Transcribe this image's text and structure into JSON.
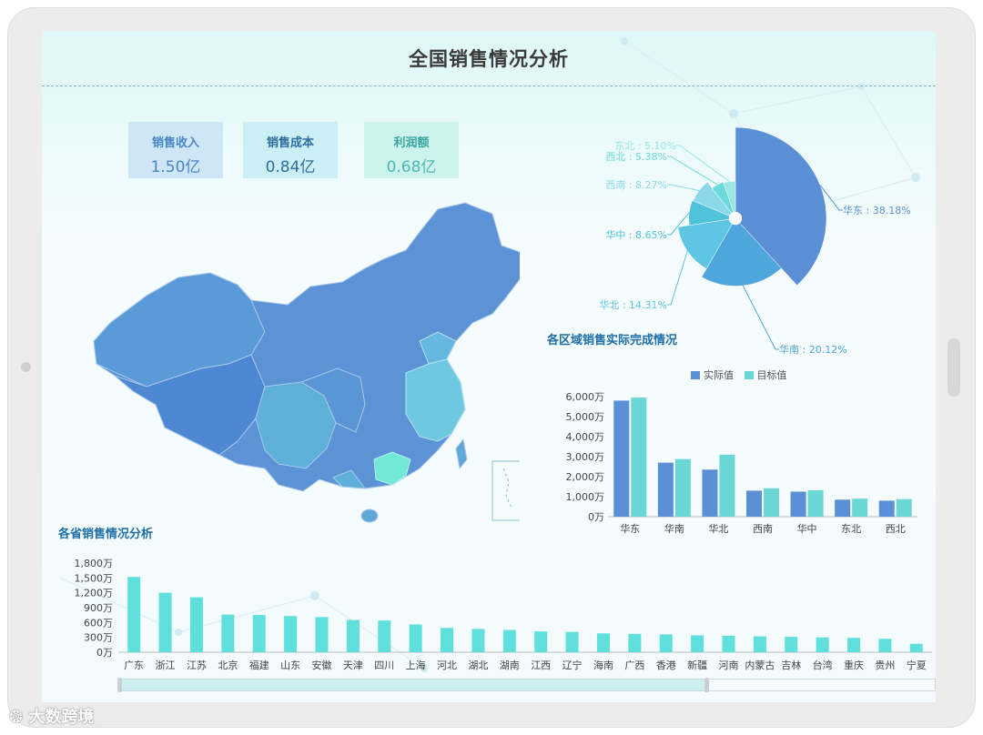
{
  "header": {
    "title": "全国销售情况分析"
  },
  "kpis": [
    {
      "label": "销售收入",
      "value": "1.50亿",
      "bg": "#cfe6f7",
      "label_color": "#4a86c5",
      "value_color": "#4a86c5"
    },
    {
      "label": "销售成本",
      "value": "0.84亿",
      "bg": "#cbeff5",
      "label_color": "#2e6f9e",
      "value_color": "#2e6f9e"
    },
    {
      "label": "利润额",
      "value": "0.68亿",
      "bg": "#cdf3ef",
      "label_color": "#3aa8a0",
      "value_color": "#4fb8b0"
    }
  ],
  "sections": {
    "region": "各区域销售实际完成情况",
    "province": "各省销售情况分析"
  },
  "legend": {
    "actual": "实际值",
    "target": "目标值"
  },
  "colors": {
    "actual": "#5b8fd6",
    "target": "#6bd6d6",
    "province_bar": "#5fe0dc",
    "title": "#3a3a3a",
    "section": "#1f6fa8"
  },
  "chart_data": [
    {
      "type": "pie",
      "subtype": "rose",
      "slices": [
        {
          "name": "华东",
          "value": 38.18,
          "label": "华东 : 38.18%",
          "color": "#5b8fd6"
        },
        {
          "name": "华南",
          "value": 20.12,
          "label": "华南 : 20.12%",
          "color": "#4fa6dd"
        },
        {
          "name": "华北",
          "value": 14.31,
          "label": "华北 : 14.31%",
          "color": "#5ec6e3"
        },
        {
          "name": "华中",
          "value": 8.65,
          "label": "华中 : 8.65%",
          "color": "#4fc3d9"
        },
        {
          "name": "西南",
          "value": 8.27,
          "label": "西南 : 8.27%",
          "color": "#8bd8e8"
        },
        {
          "name": "西北",
          "value": 5.38,
          "label": "西北 : 5.38%",
          "color": "#6cdad8"
        },
        {
          "name": "东北",
          "value": 5.1,
          "label": "东北 : 5.10%",
          "color": "#9be6e3"
        }
      ]
    },
    {
      "type": "bar",
      "title": "各区域销售实际完成情况",
      "categories": [
        "华东",
        "华南",
        "华北",
        "西南",
        "华中",
        "东北",
        "西北"
      ],
      "series": [
        {
          "name": "实际值",
          "values": [
            5800,
            2700,
            2350,
            1300,
            1250,
            850,
            800
          ]
        },
        {
          "name": "目标值",
          "values": [
            5950,
            2880,
            3100,
            1420,
            1320,
            900,
            880
          ]
        }
      ],
      "y_ticks": [
        "0万",
        "1,000万",
        "2,000万",
        "3,000万",
        "4,000万",
        "5,000万",
        "6,000万"
      ],
      "ylim": [
        0,
        6000
      ]
    },
    {
      "type": "bar",
      "title": "各省销售情况分析",
      "categories": [
        "广东",
        "浙江",
        "江苏",
        "北京",
        "福建",
        "山东",
        "安徽",
        "天津",
        "四川",
        "上海",
        "河北",
        "湖北",
        "湖南",
        "江西",
        "辽宁",
        "海南",
        "广西",
        "香港",
        "新疆",
        "河南",
        "内蒙古",
        "吉林",
        "台湾",
        "重庆",
        "贵州",
        "宁夏"
      ],
      "values": [
        1520,
        1200,
        1110,
        760,
        750,
        730,
        710,
        650,
        640,
        560,
        490,
        470,
        450,
        420,
        410,
        380,
        370,
        360,
        340,
        330,
        320,
        310,
        300,
        290,
        270,
        170
      ],
      "y_ticks": [
        "0万",
        "300万",
        "600万",
        "900万",
        "1,200万",
        "1,500万",
        "1,800万"
      ],
      "ylim": [
        0,
        1800
      ]
    }
  ],
  "watermark": "大数跨境"
}
